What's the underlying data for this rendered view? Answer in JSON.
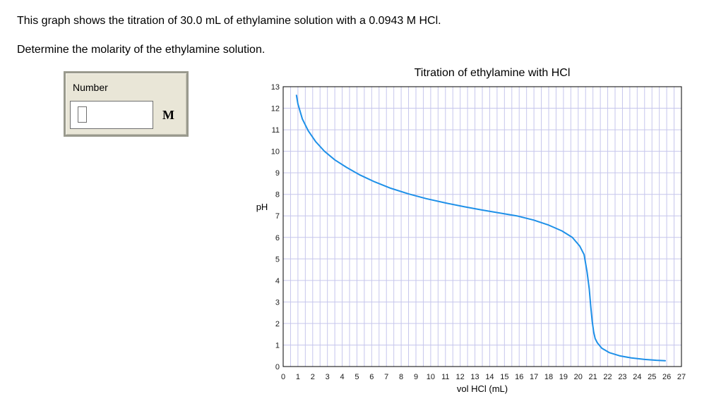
{
  "question": {
    "line1": "This graph shows the titration of 30.0 mL of ethylamine solution with a 0.0943 M HCl.",
    "line2": "Determine the molarity of the ethylamine solution."
  },
  "answer": {
    "label": "Number",
    "value": "",
    "unit": "M"
  },
  "chart_data": {
    "type": "line",
    "title": "Titration of ethylamine with HCl",
    "xlabel": "vol HCl (mL)",
    "ylabel": "pH",
    "xlim": [
      0,
      27
    ],
    "ylim": [
      0,
      13
    ],
    "grid": true,
    "minor_grid_x": 0.5,
    "xticks": [
      0,
      1,
      2,
      3,
      4,
      5,
      6,
      7,
      8,
      9,
      10,
      11,
      12,
      13,
      14,
      15,
      16,
      17,
      18,
      19,
      20,
      21,
      22,
      23,
      24,
      25,
      26,
      27
    ],
    "yticks": [
      0,
      1,
      2,
      3,
      4,
      5,
      6,
      7,
      8,
      9,
      10,
      11,
      12,
      13
    ],
    "line_color": "#1e90e8",
    "series": [
      {
        "x": [
          0.9,
          1.0,
          1.3,
          1.7,
          2.2,
          2.8,
          3.5,
          4.3,
          5.2,
          6.2,
          7.3,
          8.5,
          9.7,
          11.0,
          12.3,
          13.5,
          14.7,
          15.9,
          17.0,
          18.0,
          18.9,
          19.6,
          20.1,
          20.4,
          20.6,
          20.75,
          20.85,
          20.95,
          21.05,
          21.15,
          21.3,
          21.6,
          22.1,
          22.8,
          23.6,
          24.5,
          25.3,
          25.9
        ],
        "y": [
          12.6,
          12.2,
          11.5,
          10.95,
          10.45,
          10.0,
          9.6,
          9.25,
          8.9,
          8.58,
          8.28,
          8.02,
          7.8,
          7.6,
          7.42,
          7.27,
          7.13,
          6.99,
          6.8,
          6.57,
          6.3,
          6.0,
          5.6,
          5.2,
          4.4,
          3.6,
          2.8,
          2.1,
          1.6,
          1.3,
          1.1,
          0.85,
          0.65,
          0.5,
          0.4,
          0.33,
          0.29,
          0.27
        ]
      }
    ]
  }
}
